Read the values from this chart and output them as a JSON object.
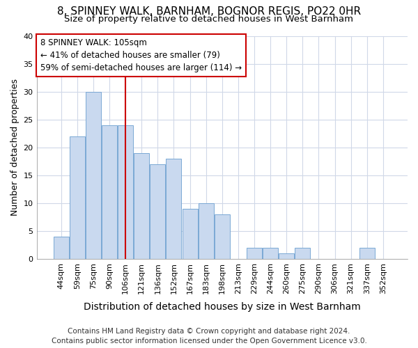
{
  "title": "8, SPINNEY WALK, BARNHAM, BOGNOR REGIS, PO22 0HR",
  "subtitle": "Size of property relative to detached houses in West Barnham",
  "xlabel": "Distribution of detached houses by size in West Barnham",
  "ylabel": "Number of detached properties",
  "footer_line1": "Contains HM Land Registry data © Crown copyright and database right 2024.",
  "footer_line2": "Contains public sector information licensed under the Open Government Licence v3.0.",
  "categories": [
    "44sqm",
    "59sqm",
    "75sqm",
    "90sqm",
    "106sqm",
    "121sqm",
    "136sqm",
    "152sqm",
    "167sqm",
    "183sqm",
    "198sqm",
    "213sqm",
    "229sqm",
    "244sqm",
    "260sqm",
    "275sqm",
    "290sqm",
    "306sqm",
    "321sqm",
    "337sqm",
    "352sqm"
  ],
  "values": [
    4,
    22,
    30,
    24,
    24,
    19,
    17,
    18,
    9,
    10,
    8,
    0,
    2,
    2,
    1,
    2,
    0,
    0,
    0,
    2,
    0
  ],
  "bar_color": "#c9d9ef",
  "bar_edgecolor": "#7aa8d4",
  "vline_x": 4,
  "vline_color": "#cc0000",
  "annotation_line1": "8 SPINNEY WALK: 105sqm",
  "annotation_line2": "← 41% of detached houses are smaller (79)",
  "annotation_line3": "59% of semi-detached houses are larger (114) →",
  "annotation_box_color": "#ffffff",
  "annotation_box_edgecolor": "#cc0000",
  "ylim": [
    0,
    40
  ],
  "yticks": [
    0,
    5,
    10,
    15,
    20,
    25,
    30,
    35,
    40
  ],
  "background_color": "#ffffff",
  "plot_background": "#ffffff",
  "grid_color": "#d0d8e8",
  "title_fontsize": 11,
  "subtitle_fontsize": 9.5,
  "xlabel_fontsize": 10,
  "ylabel_fontsize": 9,
  "tick_fontsize": 8,
  "annotation_fontsize": 8.5,
  "footer_fontsize": 7.5
}
